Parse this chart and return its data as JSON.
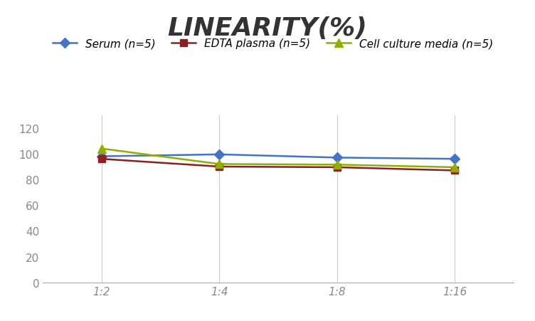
{
  "title": "LINEARITY(%)",
  "x_labels": [
    "1:2",
    "1:4",
    "1:8",
    "1:16"
  ],
  "x_positions": [
    0,
    1,
    2,
    3
  ],
  "series": [
    {
      "label": "Serum (n=5)",
      "values": [
        98,
        99.5,
        97,
        96
      ],
      "color": "#4472C4",
      "marker": "D",
      "markersize": 7
    },
    {
      "label": "EDTA plasma (n=5)",
      "values": [
        96,
        90,
        89.5,
        87
      ],
      "color": "#8B2020",
      "marker": "s",
      "markersize": 7
    },
    {
      "label": "Cell culture media (n=5)",
      "values": [
        104,
        92,
        91.5,
        89.5
      ],
      "color": "#8DB000",
      "marker": "^",
      "markersize": 8
    }
  ],
  "ylim": [
    0,
    130
  ],
  "yticks": [
    0,
    20,
    40,
    60,
    80,
    100,
    120
  ],
  "xlim": [
    -0.5,
    3.5
  ],
  "grid_color": "#CCCCCC",
  "background_color": "#FFFFFF",
  "title_fontsize": 26,
  "title_style": "italic",
  "title_weight": "bold",
  "title_color": "#333333",
  "tick_fontsize": 11,
  "tick_color": "#888888",
  "legend_fontsize": 11,
  "linewidth": 1.8
}
